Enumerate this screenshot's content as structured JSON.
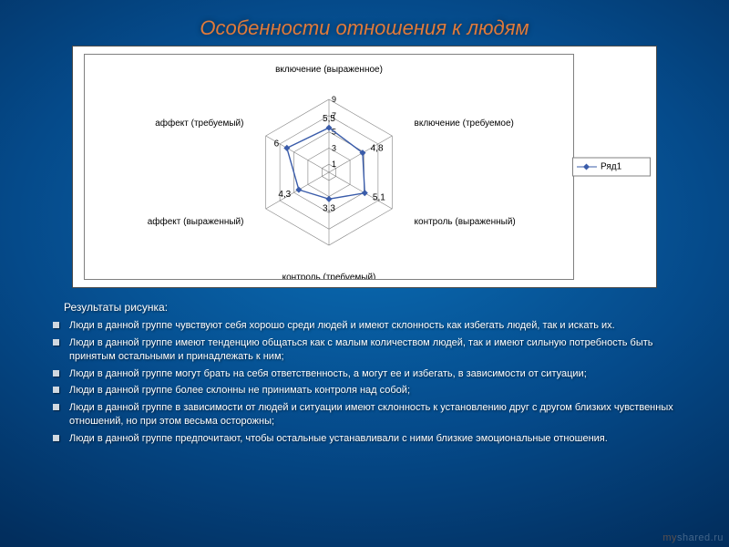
{
  "title": "Особенности отношения к людям",
  "chart": {
    "type": "radar",
    "background_color": "#ffffff",
    "border_color": "#808080",
    "grid_color": "#808080",
    "series_color": "#3a5caa",
    "label_fontsize": 10,
    "tick_fontsize": 9,
    "max": 9,
    "ticks": [
      1,
      3,
      5,
      7,
      9
    ],
    "axes": [
      "включение (выраженное)",
      "включение (требуемое)",
      "контроль (выраженный)",
      "контроль (требуемый)",
      "аффект (выраженный)",
      "аффект (требуемый)"
    ],
    "values": [
      5.5,
      4.8,
      5.1,
      3.3,
      4.3,
      6.0
    ],
    "legend": {
      "label": "Ряд1"
    }
  },
  "subtitle": "Результаты рисунка:",
  "bullets": [
    "Люди в данной группе чувствуют себя хорошо среди людей и имеют склонность как избегать людей, так и искать их.",
    "Люди в данной группе имеют тенденцию общаться как с малым количеством людей, так и имеют сильную потребность быть принятым остальными и принадлежать к ним;",
    "Люди в данной группе могут брать на себя ответственность, а могут ее и избегать, в зависимости от ситуации;",
    "Люди в данной группе более склонны не принимать контроля над собой;",
    "Люди в данной группе в зависимости от людей и ситуации имеют склонность к установлению друг с другом близких чувственных отношений, но при этом весьма осторожны;",
    "Люди в данной группе предпочитают, чтобы остальные устанавливали с ними близкие эмоциональные отношения."
  ],
  "watermark": {
    "part1": "my",
    "part2": "shared.ru"
  }
}
